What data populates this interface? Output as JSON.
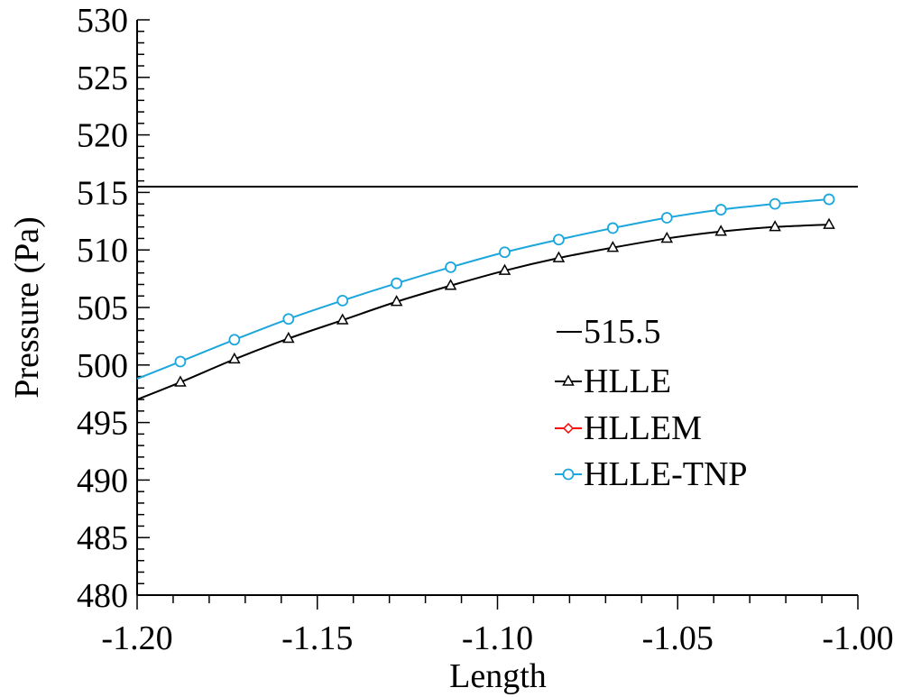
{
  "chart_data": {
    "type": "line",
    "title": "",
    "xlabel": "Length",
    "ylabel": "Pressure (Pa)",
    "xlim": [
      -1.2,
      -1.0
    ],
    "ylim": [
      480,
      530
    ],
    "x_ticks": [
      "-1.20",
      "-1.15",
      "-1.10",
      "-1.05",
      "-1.00"
    ],
    "y_ticks": [
      "480",
      "485",
      "490",
      "495",
      "500",
      "505",
      "510",
      "515",
      "520",
      "525",
      "530"
    ],
    "grid": false,
    "legend_position": "center-right",
    "series": [
      {
        "name": "515.5",
        "style": "line",
        "color": "#000000",
        "x": [
          -1.2,
          -1.0
        ],
        "y": [
          515.5,
          515.5
        ]
      },
      {
        "name": "HLLE",
        "marker": "triangle",
        "color": "#000000",
        "x": [
          -1.2,
          -1.188,
          -1.173,
          -1.158,
          -1.143,
          -1.128,
          -1.113,
          -1.098,
          -1.083,
          -1.068,
          -1.053,
          -1.038,
          -1.023,
          -1.008
        ],
        "y": [
          497.0,
          498.5,
          500.5,
          502.3,
          503.9,
          505.5,
          506.9,
          508.2,
          509.3,
          510.2,
          511.0,
          511.6,
          512.0,
          512.2
        ]
      },
      {
        "name": "HLLEM",
        "marker": "diamond",
        "color": "#ff0000",
        "x": [],
        "y": []
      },
      {
        "name": "HLLE-TNP",
        "marker": "circle",
        "color": "#1ba6dc",
        "x": [
          -1.2,
          -1.188,
          -1.173,
          -1.158,
          -1.143,
          -1.128,
          -1.113,
          -1.098,
          -1.083,
          -1.068,
          -1.053,
          -1.038,
          -1.023,
          -1.008
        ],
        "y": [
          498.8,
          500.3,
          502.2,
          504.0,
          505.6,
          507.1,
          508.5,
          509.8,
          510.9,
          511.9,
          512.8,
          513.5,
          514.0,
          514.4
        ]
      }
    ]
  }
}
